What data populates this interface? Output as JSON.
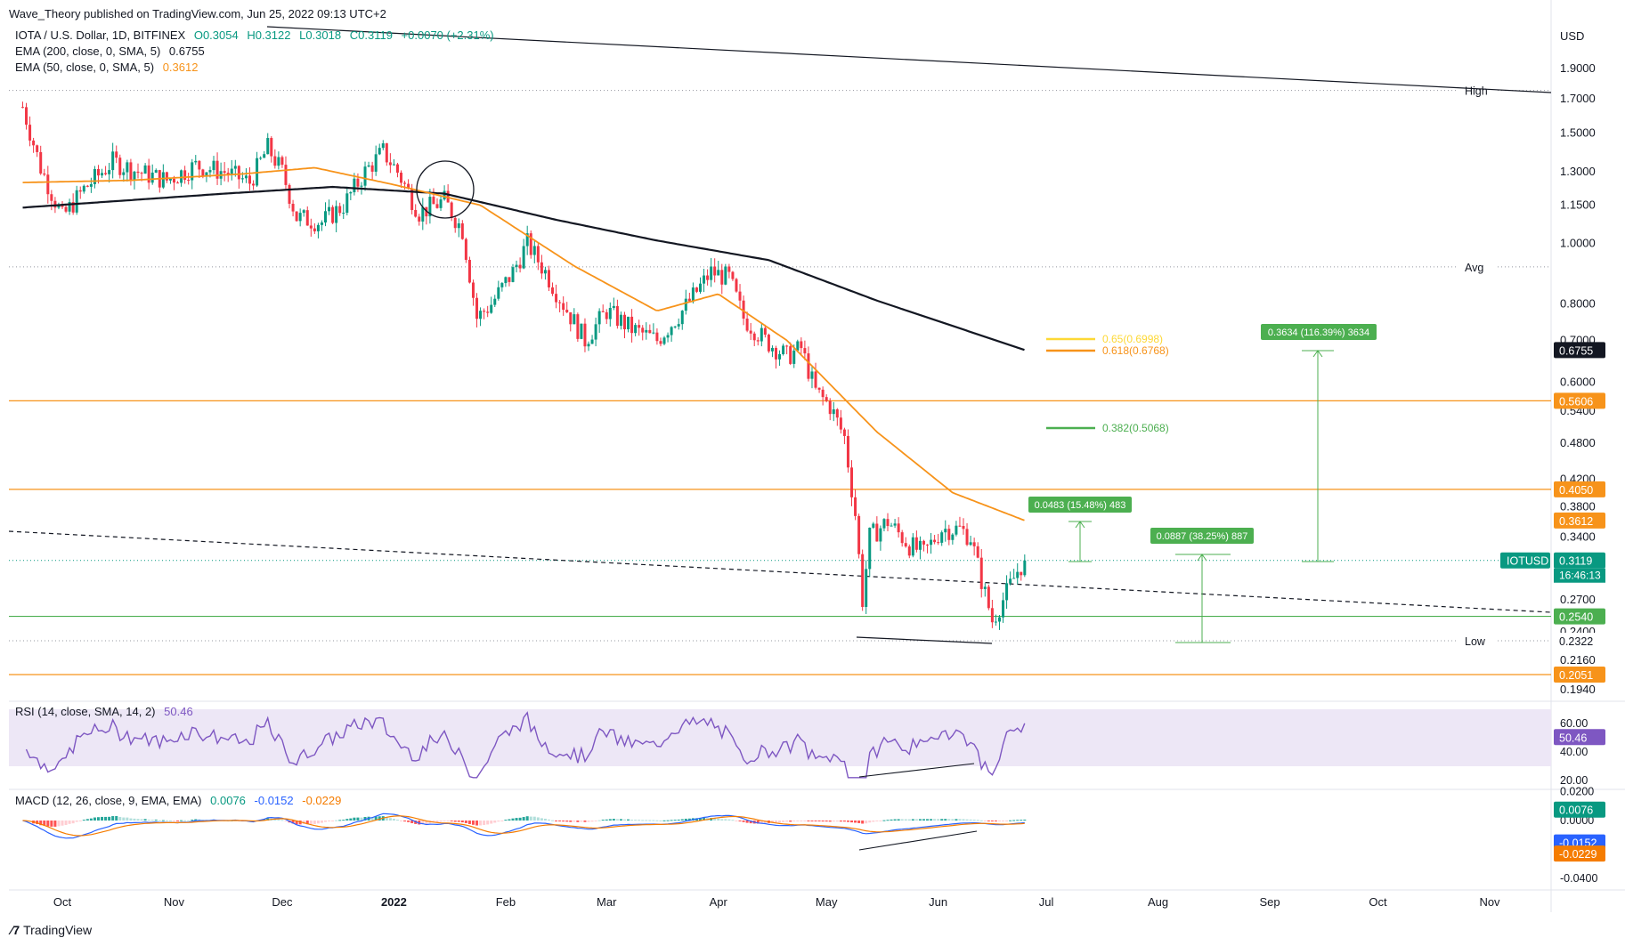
{
  "header": "Wave_Theory published on TradingView.com, Jun 25, 2022 09:13 UTC+2",
  "brand": "TradingView",
  "symbol": {
    "title": "IOTA / U.S. Dollar, 1D, BITFINEX",
    "open": "O0.3054",
    "high": "H0.3122",
    "low": "L0.3018",
    "close": "C0.3119",
    "change": "+0.0070 (+2.31%)"
  },
  "legend": {
    "ema200": {
      "label": "EMA (200, close, 0, SMA, 5)",
      "value": "0.6755",
      "color": "#131722"
    },
    "ema50": {
      "label": "EMA (50, close, 0, SMA, 5)",
      "value": "0.3612",
      "color": "#f7931a"
    }
  },
  "rsi": {
    "label": "RSI (14, close, SMA, 14, 2)",
    "value": "50.46"
  },
  "macd": {
    "label": "MACD (12, 26, close, 9, EMA, EMA)",
    "hist": "0.0076",
    "macd": "-0.0152",
    "signal": "-0.0229"
  },
  "chart_data": {
    "type": "candlestick",
    "price_axis": {
      "unit": "USD",
      "scale": "log",
      "ticks": [
        "1.9000",
        "1.7000",
        "1.5000",
        "1.3000",
        "1.1500",
        "1.0000",
        "0.8000",
        "0.7000",
        "0.6000",
        "0.5400",
        "0.4800",
        "0.4200",
        "0.3800",
        "0.3400",
        "0.2700",
        "0.2400",
        "0.2160",
        "0.1940"
      ]
    },
    "time_axis": {
      "ticks": [
        "Oct",
        "Nov",
        "Dec",
        "2022",
        "Feb",
        "Mar",
        "Apr",
        "May",
        "Jun",
        "Jul",
        "Aug",
        "Sep",
        "Oct",
        "Nov"
      ]
    },
    "price_path": [
      [
        "2021-09-20",
        1.65
      ],
      [
        "2021-09-25",
        1.32
      ],
      [
        "2021-10-01",
        1.1
      ],
      [
        "2021-10-07",
        1.22
      ],
      [
        "2021-10-15",
        1.35
      ],
      [
        "2021-10-22",
        1.3
      ],
      [
        "2021-10-30",
        1.26
      ],
      [
        "2021-11-07",
        1.33
      ],
      [
        "2021-11-15",
        1.3
      ],
      [
        "2021-11-22",
        1.25
      ],
      [
        "2021-11-27",
        1.42
      ],
      [
        "2021-12-01",
        1.3
      ],
      [
        "2021-12-05",
        1.1
      ],
      [
        "2021-12-12",
        1.08
      ],
      [
        "2021-12-18",
        1.15
      ],
      [
        "2021-12-24",
        1.3
      ],
      [
        "2021-12-29",
        1.4
      ],
      [
        "2022-01-02",
        1.3
      ],
      [
        "2022-01-08",
        1.12
      ],
      [
        "2022-01-15",
        1.17
      ],
      [
        "2022-01-20",
        1.05
      ],
      [
        "2022-01-24",
        0.76
      ],
      [
        "2022-01-28",
        0.8
      ],
      [
        "2022-02-03",
        0.9
      ],
      [
        "2022-02-07",
        1.0
      ],
      [
        "2022-02-12",
        0.9
      ],
      [
        "2022-02-17",
        0.8
      ],
      [
        "2022-02-23",
        0.7
      ],
      [
        "2022-03-01",
        0.78
      ],
      [
        "2022-03-08",
        0.73
      ],
      [
        "2022-03-15",
        0.7
      ],
      [
        "2022-03-22",
        0.78
      ],
      [
        "2022-03-30",
        0.9
      ],
      [
        "2022-04-04",
        0.88
      ],
      [
        "2022-04-08",
        0.76
      ],
      [
        "2022-04-14",
        0.7
      ],
      [
        "2022-04-20",
        0.66
      ],
      [
        "2022-04-24",
        0.68
      ],
      [
        "2022-04-28",
        0.58
      ],
      [
        "2022-05-02",
        0.55
      ],
      [
        "2022-05-06",
        0.49
      ],
      [
        "2022-05-09",
        0.37
      ],
      [
        "2022-05-11",
        0.27
      ],
      [
        "2022-05-13",
        0.34
      ],
      [
        "2022-05-18",
        0.36
      ],
      [
        "2022-05-24",
        0.33
      ],
      [
        "2022-05-28",
        0.32
      ],
      [
        "2022-06-02",
        0.35
      ],
      [
        "2022-06-07",
        0.35
      ],
      [
        "2022-06-10",
        0.34
      ],
      [
        "2022-06-13",
        0.29
      ],
      [
        "2022-06-16",
        0.25
      ],
      [
        "2022-06-19",
        0.27
      ],
      [
        "2022-06-23",
        0.3
      ],
      [
        "2022-06-25",
        0.3119
      ]
    ],
    "ema200_path": [
      [
        "2021-09-20",
        1.14
      ],
      [
        "2021-11-15",
        1.2
      ],
      [
        "2021-12-15",
        1.23
      ],
      [
        "2022-01-15",
        1.2
      ],
      [
        "2022-02-15",
        1.09
      ],
      [
        "2022-03-15",
        1.01
      ],
      [
        "2022-04-15",
        0.94
      ],
      [
        "2022-05-15",
        0.81
      ],
      [
        "2022-06-25",
        0.6755
      ]
    ],
    "ema50_path": [
      [
        "2021-09-20",
        1.25
      ],
      [
        "2021-10-20",
        1.26
      ],
      [
        "2021-11-20",
        1.29
      ],
      [
        "2021-12-10",
        1.32
      ],
      [
        "2022-01-01",
        1.24
      ],
      [
        "2022-01-25",
        1.15
      ],
      [
        "2022-02-20",
        0.92
      ],
      [
        "2022-03-15",
        0.78
      ],
      [
        "2022-04-01",
        0.83
      ],
      [
        "2022-04-20",
        0.7
      ],
      [
        "2022-05-15",
        0.5
      ],
      [
        "2022-06-05",
        0.4
      ],
      [
        "2022-06-25",
        0.3612
      ]
    ],
    "levels": [
      {
        "label": "High",
        "value": "1.7530",
        "style": "dotted"
      },
      {
        "label": "Avg",
        "value": "0.9170",
        "style": "dotted"
      },
      {
        "label": "",
        "value": "0.5606",
        "color": "#f7931a"
      },
      {
        "label": "",
        "value": "0.4050",
        "color": "#f7931a"
      },
      {
        "label": "",
        "value": "0.2540",
        "color": "#4caf50"
      },
      {
        "label": "Low",
        "value": "0.2322",
        "style": "dotted"
      },
      {
        "label": "",
        "value": "0.2051",
        "color": "#f7931a"
      }
    ],
    "fib_levels": [
      {
        "label": "0.65(0.6998)",
        "color": "#fdd835"
      },
      {
        "label": "0.618(0.6768)",
        "color": "#f7931a"
      },
      {
        "label": "0.382(0.5068)",
        "color": "#4caf50"
      }
    ],
    "measure_labels": [
      "0.0483 (15.48%) 483",
      "0.0887 (38.25%) 887",
      "0.3634 (116.39%) 3634"
    ],
    "price_tags": [
      {
        "label": "0.6755",
        "bg": "#131722"
      },
      {
        "label": "0.5606",
        "bg": "#f7931a"
      },
      {
        "label": "0.4050",
        "bg": "#f7931a"
      },
      {
        "label": "0.3612",
        "bg": "#f7931a"
      },
      {
        "label": "0.3119",
        "bg": "#089981"
      },
      {
        "label": "0.2540",
        "bg": "#4caf50"
      },
      {
        "label": "0.2322",
        "bg": "#ffffff"
      },
      {
        "label": "0.2051",
        "bg": "#f7931a"
      }
    ],
    "symbol_tag": "IOTUSD",
    "countdown": "16:46:13",
    "rsi_axis": {
      "ticks": [
        "60.00",
        "40.00",
        "20.00"
      ],
      "band": [
        30,
        70
      ]
    },
    "macd_axis": {
      "ticks": [
        "0.0200",
        "0.0000",
        "-0.0400"
      ]
    }
  }
}
